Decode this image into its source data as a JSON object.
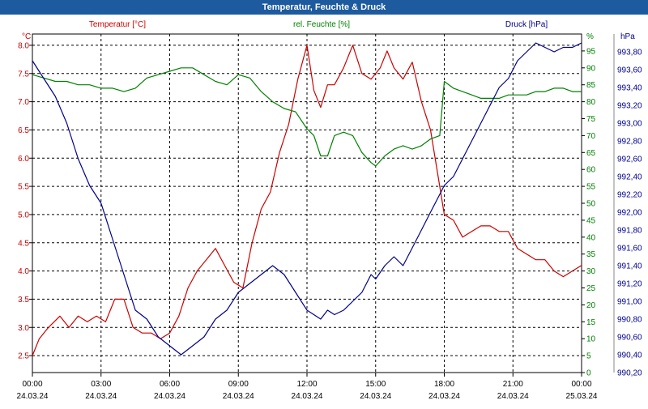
{
  "window": {
    "title": "Temperatur, Feuchte & Druck"
  },
  "colors": {
    "temperature": "#cc0000",
    "humidity": "#008000",
    "pressure": "#00008b",
    "titlebar": "#1d5b9e"
  },
  "chart_data": {
    "type": "line",
    "title": "Temperatur, Feuchte & Druck",
    "grid": true,
    "grid_style": "dashed",
    "x_axis": {
      "range": [
        "24.03.24 00:00",
        "25.03.24 00:00"
      ],
      "ticks": [
        {
          "time": "00:00",
          "date": "24.03.24",
          "hours": 0
        },
        {
          "time": "03:00",
          "date": "24.03.24",
          "hours": 3
        },
        {
          "time": "06:00",
          "date": "24.03.24",
          "hours": 6
        },
        {
          "time": "09:00",
          "date": "24.03.24",
          "hours": 9
        },
        {
          "time": "12:00",
          "date": "24.03.24",
          "hours": 12
        },
        {
          "time": "15:00",
          "date": "24.03.24",
          "hours": 15
        },
        {
          "time": "18:00",
          "date": "24.03.24",
          "hours": 18
        },
        {
          "time": "21:00",
          "date": "24.03.24",
          "hours": 21
        },
        {
          "time": "00:00",
          "date": "25.03.24",
          "hours": 24
        }
      ]
    },
    "y_axes": [
      {
        "id": "temp",
        "side": "left",
        "unit": "°C",
        "range": [
          2.2,
          8.2
        ],
        "ticks": [
          "2.5",
          "3.0",
          "3.5",
          "4.0",
          "4.5",
          "5.0",
          "5.5",
          "6.0",
          "6.5",
          "7.0",
          "7.5",
          "8.0"
        ]
      },
      {
        "id": "hum",
        "side": "right",
        "unit": "%",
        "range": [
          0,
          100
        ],
        "ticks": [
          "0",
          "5",
          "10",
          "15",
          "20",
          "25",
          "30",
          "35",
          "40",
          "45",
          "50",
          "55",
          "60",
          "65",
          "70",
          "75",
          "80",
          "85",
          "90",
          "95",
          "%"
        ]
      },
      {
        "id": "press",
        "side": "right",
        "unit": "hPa",
        "range": [
          990.2,
          994.0
        ],
        "ticks": [
          "990,20",
          "990,40",
          "990,60",
          "990,80",
          "991,00",
          "991,20",
          "991,40",
          "991,60",
          "991,80",
          "992,00",
          "992,20",
          "992,40",
          "992,60",
          "992,80",
          "993,00",
          "993,20",
          "993,40",
          "993,60",
          "993,80"
        ]
      }
    ],
    "series": [
      {
        "name": "Temperatur [°C]",
        "axis": "temp",
        "x": [
          0,
          0.3,
          0.7,
          1.2,
          1.6,
          2.0,
          2.4,
          2.8,
          3.2,
          3.6,
          4.0,
          4.4,
          4.8,
          5.2,
          5.6,
          6.0,
          6.4,
          6.8,
          7.2,
          7.6,
          8.0,
          8.4,
          8.8,
          9.2,
          9.6,
          10.0,
          10.4,
          10.8,
          11.2,
          11.6,
          12.0,
          12.3,
          12.6,
          12.9,
          13.2,
          13.6,
          14.0,
          14.4,
          14.8,
          15.0,
          15.2,
          15.5,
          15.8,
          16.2,
          16.6,
          17.0,
          17.4,
          17.8,
          18.0,
          18.4,
          18.8,
          19.2,
          19.6,
          20.0,
          20.4,
          20.8,
          21.2,
          21.6,
          22.0,
          22.4,
          22.8,
          23.2,
          23.6,
          24.0
        ],
        "y": [
          2.5,
          2.8,
          3.0,
          3.2,
          3.0,
          3.2,
          3.1,
          3.2,
          3.1,
          3.5,
          3.5,
          3.0,
          2.9,
          2.9,
          2.8,
          2.9,
          3.2,
          3.7,
          4.0,
          4.2,
          4.4,
          4.1,
          3.8,
          3.7,
          4.5,
          5.1,
          5.4,
          6.1,
          6.6,
          7.4,
          8.0,
          7.2,
          6.9,
          7.3,
          7.3,
          7.6,
          8.0,
          7.5,
          7.4,
          7.5,
          7.6,
          7.9,
          7.6,
          7.4,
          7.7,
          7.0,
          6.5,
          5.5,
          5.0,
          4.9,
          4.6,
          4.7,
          4.8,
          4.8,
          4.7,
          4.7,
          4.4,
          4.3,
          4.2,
          4.2,
          4.0,
          3.9,
          4.0,
          4.1
        ]
      },
      {
        "name": "rel. Feuchte [%]",
        "axis": "hum",
        "x": [
          0,
          0.5,
          1.0,
          1.5,
          2.0,
          2.5,
          3.0,
          3.5,
          4.0,
          4.5,
          5.0,
          5.5,
          6.0,
          6.5,
          7.0,
          7.5,
          8.0,
          8.5,
          9.0,
          9.5,
          10.0,
          10.5,
          11.0,
          11.5,
          12.0,
          12.3,
          12.6,
          12.9,
          13.2,
          13.6,
          14.0,
          14.4,
          14.8,
          15.0,
          15.4,
          15.8,
          16.2,
          16.6,
          17.0,
          17.4,
          17.8,
          18.0,
          18.4,
          18.8,
          19.2,
          19.6,
          20.0,
          20.4,
          20.8,
          21.2,
          21.6,
          22.0,
          22.4,
          22.8,
          23.2,
          23.6,
          24.0
        ],
        "y": [
          88,
          87,
          86,
          86,
          85,
          85,
          84,
          84,
          83,
          84,
          87,
          88,
          89,
          90,
          90,
          88,
          86,
          85,
          88,
          87,
          83,
          80,
          78,
          77,
          72,
          70,
          64,
          64,
          70,
          71,
          70,
          65,
          62,
          61,
          64,
          66,
          67,
          66,
          67,
          69,
          70,
          86,
          84,
          83,
          82,
          81,
          81,
          81,
          82,
          82,
          82,
          83,
          83,
          84,
          84,
          83,
          83
        ]
      },
      {
        "name": "Druck [hPa]",
        "axis": "press",
        "x": [
          0,
          0.5,
          1.0,
          1.5,
          2.0,
          2.5,
          3.0,
          3.5,
          4.0,
          4.5,
          5.0,
          5.5,
          6.0,
          6.5,
          7.0,
          7.5,
          8.0,
          8.5,
          9.0,
          9.5,
          10.0,
          10.5,
          11.0,
          11.5,
          12.0,
          12.3,
          12.6,
          12.9,
          13.2,
          13.6,
          14.0,
          14.4,
          14.8,
          15.0,
          15.4,
          15.8,
          16.2,
          16.6,
          17.0,
          17.4,
          17.8,
          18.0,
          18.4,
          18.8,
          19.2,
          19.6,
          20.0,
          20.4,
          20.8,
          21.2,
          21.6,
          22.0,
          22.4,
          22.8,
          23.2,
          23.6,
          24.0
        ],
        "y": [
          993.7,
          993.5,
          993.3,
          993.0,
          992.6,
          992.3,
          992.1,
          991.7,
          991.3,
          990.9,
          990.8,
          990.6,
          990.5,
          990.4,
          990.5,
          990.6,
          990.8,
          990.9,
          991.1,
          991.2,
          991.3,
          991.4,
          991.3,
          991.1,
          990.9,
          990.85,
          990.8,
          990.9,
          990.85,
          990.9,
          991.0,
          991.1,
          991.3,
          991.25,
          991.4,
          991.5,
          991.4,
          991.6,
          991.8,
          992.0,
          992.2,
          992.3,
          992.4,
          992.6,
          992.8,
          993.0,
          993.2,
          993.4,
          993.5,
          993.7,
          993.8,
          993.9,
          993.85,
          993.8,
          993.85,
          993.85,
          993.9
        ]
      }
    ]
  }
}
